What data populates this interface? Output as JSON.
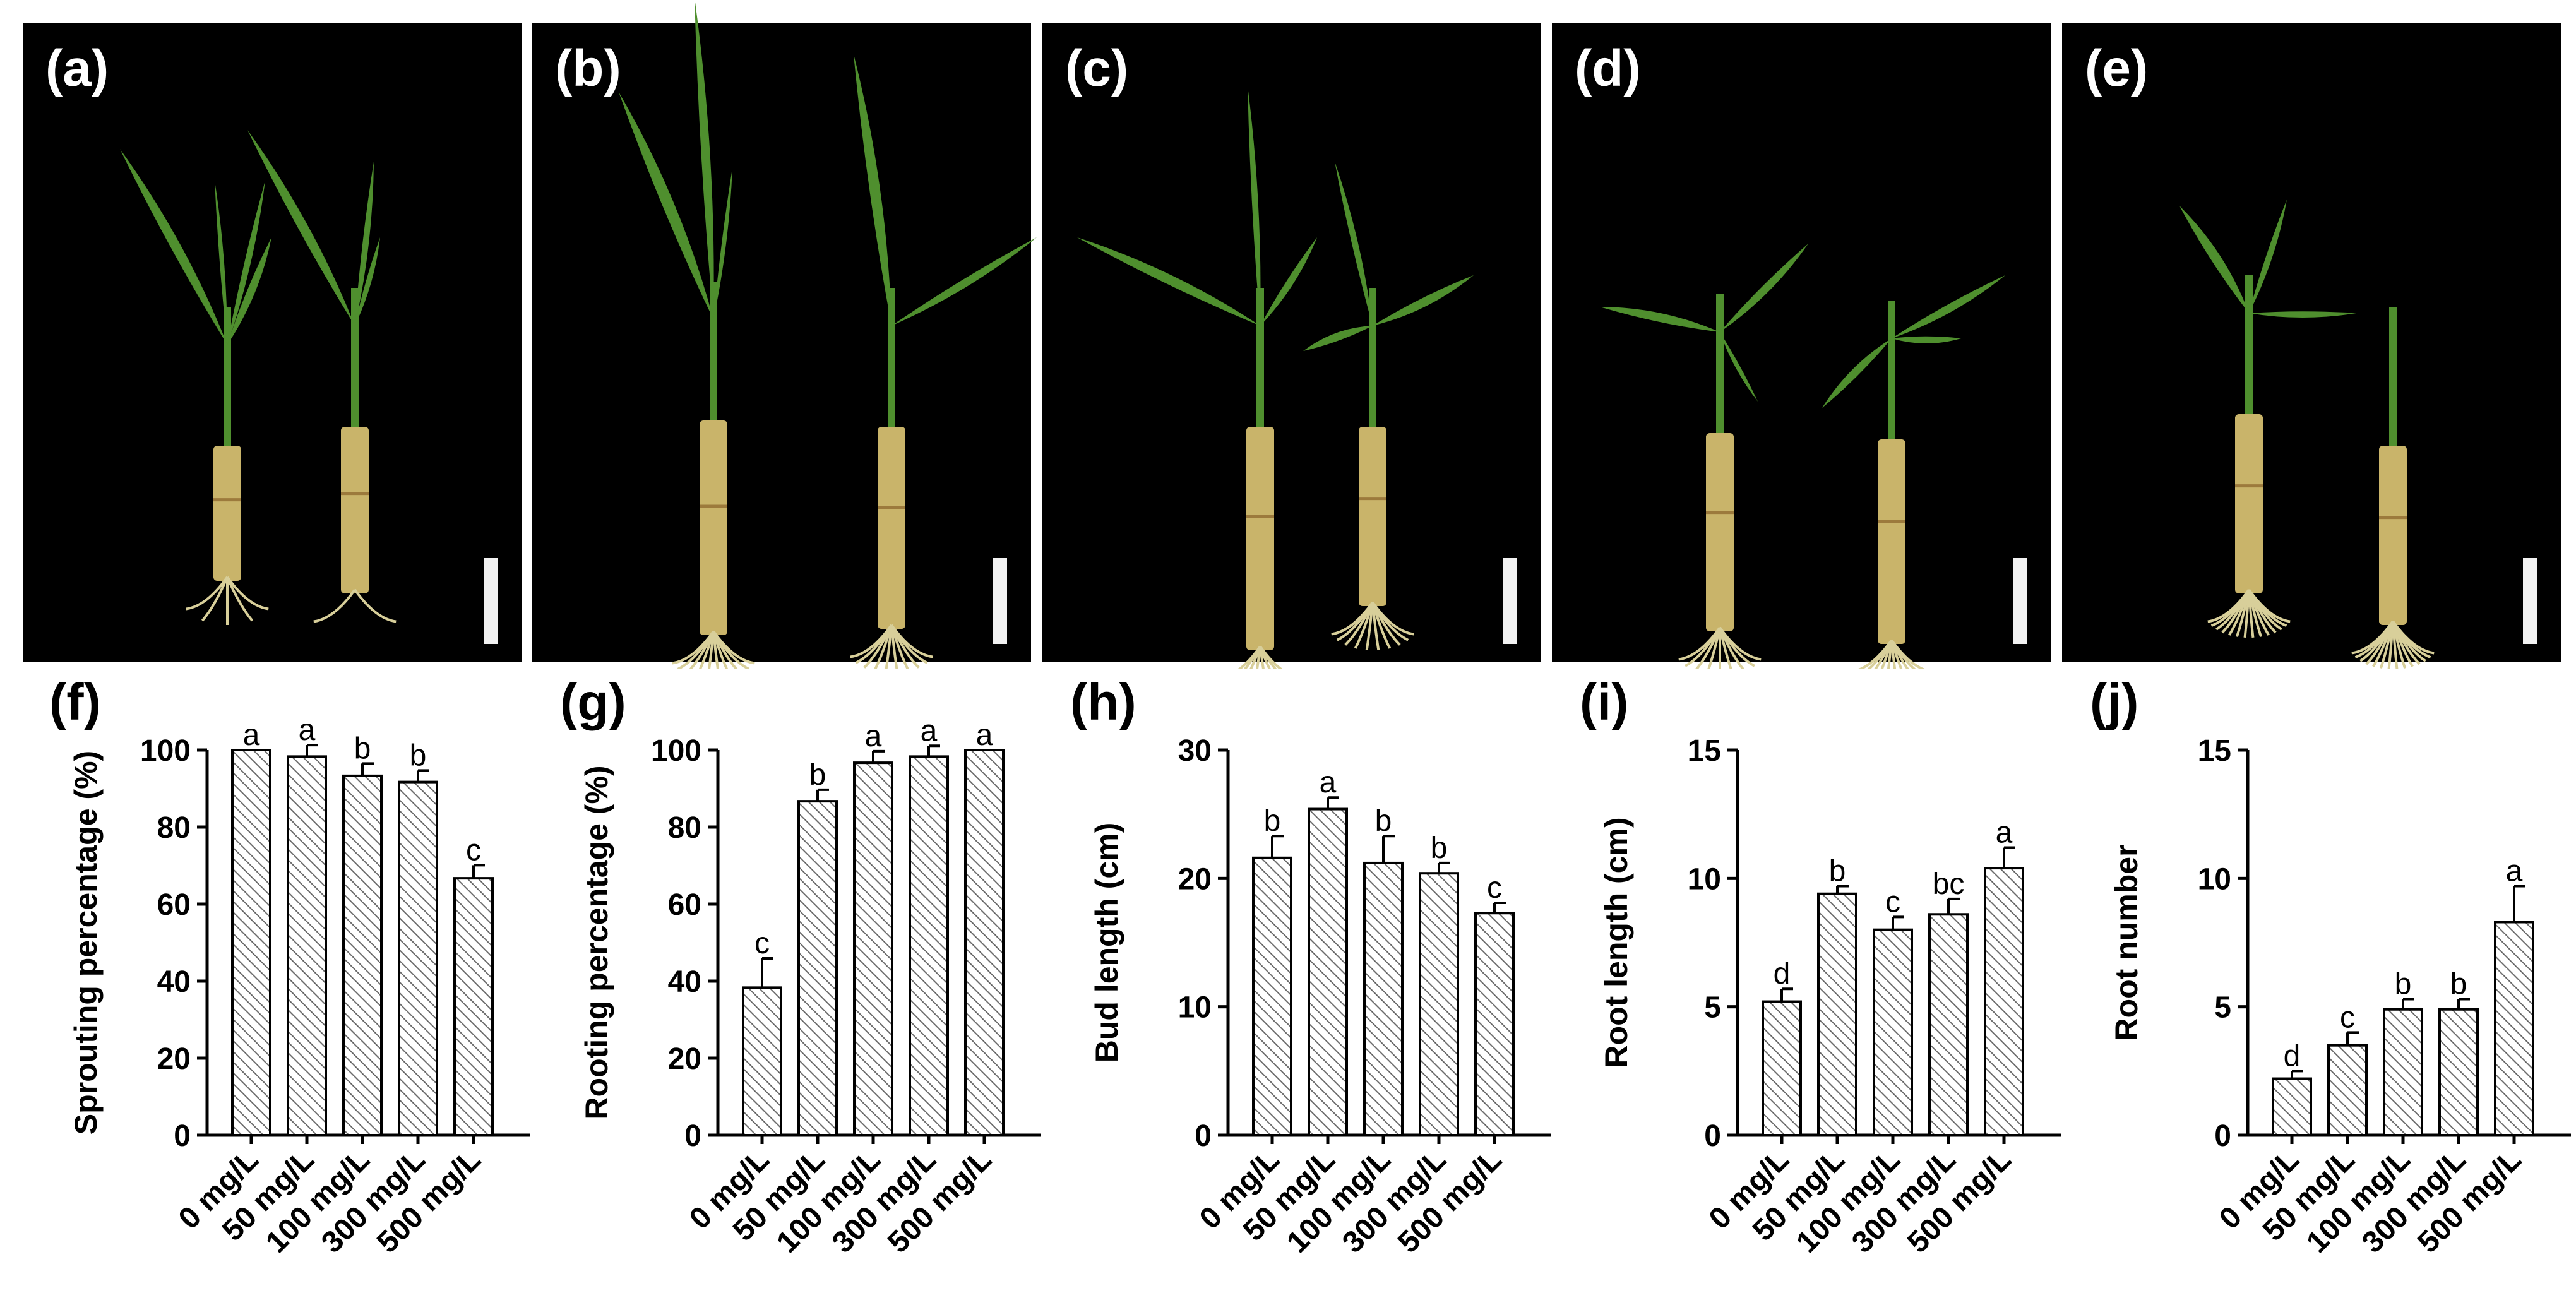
{
  "figure": {
    "panel_labels": [
      "(a)",
      "(b)",
      "(c)",
      "(d)",
      "(e)"
    ]
  },
  "colors": {
    "photo_background": "#000000",
    "scale_bar": "#f2f2f2",
    "leaf": "#4f8f2e",
    "stem": "#c9b46a",
    "root": "#d8cf9a",
    "bar_hatch": "#6b6b6b"
  },
  "icons": [
    "scale-bar-icon",
    "sugarcane-seedling-icon"
  ],
  "chart_data": [
    {
      "panel": "(f)",
      "type": "bar",
      "categories": [
        "0 mg/L",
        "50 mg/L",
        "100 mg/L",
        "300 mg/L",
        "500 mg/L"
      ],
      "values": [
        100,
        98.3,
        93.3,
        91.7,
        66.7
      ],
      "errors": [
        0,
        3.0,
        3.2,
        3.0,
        3.4
      ],
      "letters": [
        "a",
        "a",
        "b",
        "b",
        "c"
      ],
      "ylabel": "Sprouting percentage (%)",
      "ylim": [
        0,
        100
      ],
      "yticks": [
        "0",
        "20",
        "40",
        "60",
        "80",
        "100"
      ]
    },
    {
      "panel": "(g)",
      "type": "bar",
      "categories": [
        "0 mg/L",
        "50 mg/L",
        "100 mg/L",
        "300 mg/L",
        "500 mg/L"
      ],
      "values": [
        38.3,
        86.7,
        96.7,
        98.3,
        100
      ],
      "errors": [
        7.6,
        3.0,
        3.0,
        2.8,
        0
      ],
      "letters": [
        "c",
        "b",
        "a",
        "a",
        "a"
      ],
      "ylabel": "Rooting percentage (%)",
      "ylim": [
        0,
        100
      ],
      "yticks": [
        "0",
        "20",
        "40",
        "60",
        "80",
        "100"
      ]
    },
    {
      "panel": "(h)",
      "type": "bar",
      "categories": [
        "0 mg/L",
        "50 mg/L",
        "100 mg/L",
        "300 mg/L",
        "500 mg/L"
      ],
      "values": [
        21.6,
        25.4,
        21.2,
        20.4,
        17.3
      ],
      "errors": [
        1.7,
        0.9,
        2.1,
        0.8,
        0.8
      ],
      "letters": [
        "b",
        "a",
        "b",
        "b",
        "c"
      ],
      "ylabel": "Bud length (cm)",
      "ylim": [
        0,
        30
      ],
      "yticks": [
        "0",
        "10",
        "20",
        "30"
      ]
    },
    {
      "panel": "(i)",
      "type": "bar",
      "categories": [
        "0 mg/L",
        "50 mg/L",
        "100 mg/L",
        "300 mg/L",
        "500 mg/L"
      ],
      "values": [
        5.2,
        9.4,
        8.0,
        8.6,
        10.4
      ],
      "errors": [
        0.5,
        0.3,
        0.5,
        0.6,
        0.8
      ],
      "letters": [
        "d",
        "b",
        "c",
        "bc",
        "a"
      ],
      "ylabel": "Root length (cm)",
      "ylim": [
        0,
        15
      ],
      "yticks": [
        "0",
        "5",
        "10",
        "15"
      ]
    },
    {
      "panel": "(j)",
      "type": "bar",
      "categories": [
        "0 mg/L",
        "50 mg/L",
        "100 mg/L",
        "300 mg/L",
        "500 mg/L"
      ],
      "values": [
        2.2,
        3.5,
        4.9,
        4.9,
        8.3
      ],
      "errors": [
        0.3,
        0.5,
        0.4,
        0.4,
        1.4
      ],
      "letters": [
        "d",
        "c",
        "b",
        "b",
        "a"
      ],
      "ylabel": "Root number",
      "ylim": [
        0,
        15
      ],
      "yticks": [
        "0",
        "5",
        "10",
        "15"
      ]
    }
  ]
}
